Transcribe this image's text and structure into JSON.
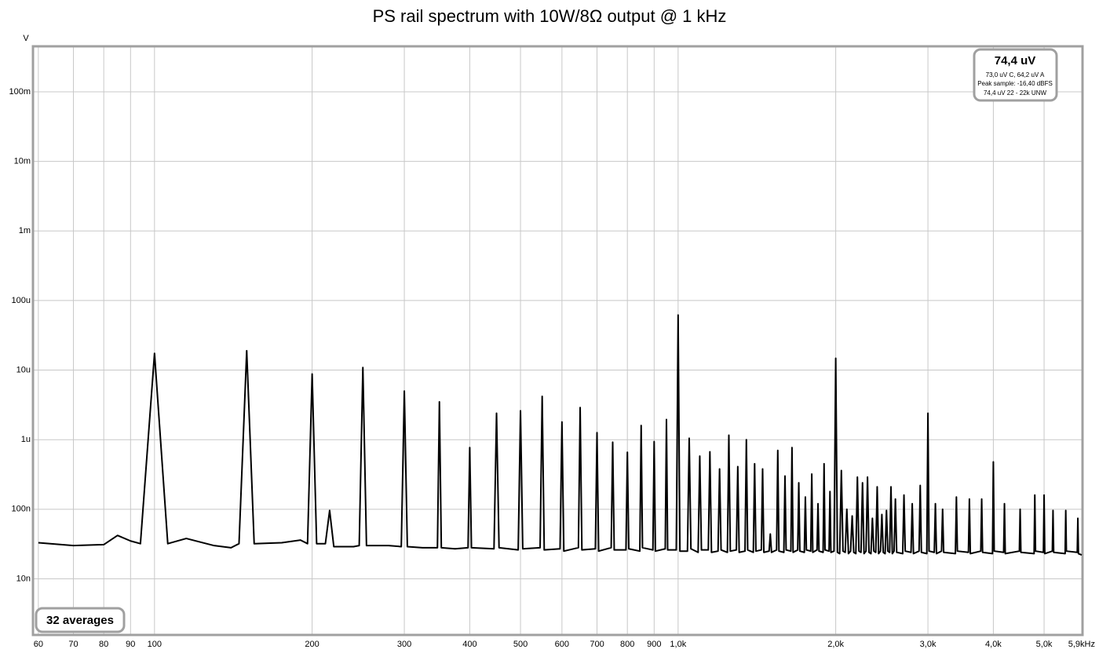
{
  "chart_data": {
    "type": "line",
    "title": "PS rail spectrum with 10W/8Ω output @ 1 kHz",
    "ylabel": "V",
    "log_x": true,
    "log_y": true,
    "grid": true,
    "color": "#000000",
    "xlim": [
      58.8,
      5900
    ],
    "ylim": [
      1.6e-09,
      0.44
    ],
    "xticks": [
      60,
      70,
      80,
      90,
      100,
      200,
      300,
      400,
      500,
      600,
      700,
      800,
      900,
      {
        "value": 1000,
        "label": "1,0k"
      },
      {
        "value": 2000,
        "label": "2,0k"
      },
      {
        "value": 3000,
        "label": "3,0k"
      },
      {
        "value": 4000,
        "label": "4,0k"
      },
      {
        "value": 5000,
        "label": "5,0k"
      },
      {
        "value": 5900,
        "label": "5,9kHz"
      }
    ],
    "yticks": [
      {
        "value": 1e-08,
        "label": "10n"
      },
      {
        "value": 1e-07,
        "label": "100n"
      },
      {
        "value": 1e-06,
        "label": "1u"
      },
      {
        "value": 1e-05,
        "label": "10u"
      },
      {
        "value": 0.0001,
        "label": "100u"
      },
      {
        "value": 0.001,
        "label": "1m"
      },
      {
        "value": 0.01,
        "label": "10m"
      },
      {
        "value": 0.1,
        "label": "100m"
      }
    ],
    "annotations": {
      "rms": "74,4 uV",
      "weighted": "73,0 uV C, 64,2 uV A",
      "peak": "Peak sample: -16,40 dBFS",
      "band": "74,4 uV 22 - 22k UNW",
      "averages": "32 averages"
    },
    "x": [
      60,
      70,
      80,
      85,
      90,
      94,
      100,
      106,
      115,
      130,
      140,
      145,
      150,
      155,
      175,
      190,
      196,
      200,
      204,
      212,
      216,
      220,
      240,
      246,
      250,
      254,
      280,
      296,
      300,
      304,
      325,
      347,
      350,
      353,
      375,
      397,
      400,
      403,
      445,
      450,
      455,
      495,
      500,
      505,
      545,
      550,
      555,
      595,
      600,
      605,
      645,
      650,
      655,
      695,
      700,
      705,
      745,
      750,
      755,
      795,
      800,
      805,
      845,
      850,
      855,
      895,
      900,
      905,
      945,
      950,
      955,
      992,
      1000,
      1008,
      1042,
      1050,
      1058,
      1092,
      1100,
      1108,
      1142,
      1150,
      1158,
      1192,
      1200,
      1208,
      1242,
      1250,
      1258,
      1292,
      1300,
      1308,
      1342,
      1350,
      1358,
      1392,
      1400,
      1408,
      1442,
      1450,
      1458,
      1492,
      1500,
      1508,
      1542,
      1550,
      1558,
      1592,
      1600,
      1608,
      1642,
      1650,
      1658,
      1692,
      1700,
      1708,
      1742,
      1750,
      1758,
      1792,
      1800,
      1808,
      1842,
      1850,
      1858,
      1892,
      1900,
      1908,
      1942,
      1950,
      1958,
      1985,
      2000,
      2015,
      2035,
      2050,
      2065,
      2085,
      2100,
      2115,
      2135,
      2150,
      2165,
      2185,
      2200,
      2215,
      2235,
      2250,
      2265,
      2285,
      2300,
      2315,
      2335,
      2350,
      2365,
      2385,
      2400,
      2415,
      2435,
      2450,
      2465,
      2485,
      2500,
      2515,
      2535,
      2550,
      2565,
      2585,
      2600,
      2615,
      2685,
      2700,
      2715,
      2785,
      2800,
      2815,
      2885,
      2900,
      2915,
      2985,
      3000,
      3015,
      3085,
      3100,
      3115,
      3185,
      3200,
      3215,
      3385,
      3400,
      3415,
      3585,
      3600,
      3615,
      3785,
      3800,
      3815,
      3985,
      4000,
      4015,
      4185,
      4200,
      4215,
      4485,
      4500,
      4515,
      4785,
      4800,
      4815,
      4985,
      5000,
      5015,
      5185,
      5200,
      5215,
      5485,
      5500,
      5515,
      5785,
      5800,
      5815,
      5900
    ],
    "values": [
      3.3e-08,
      3e-08,
      3.1e-08,
      4.2e-08,
      3.5e-08,
      3.2e-08,
      1.74e-05,
      3.2e-08,
      3.8e-08,
      3e-08,
      2.8e-08,
      3.2e-08,
      1.9e-05,
      3.2e-08,
      3.3e-08,
      3.6e-08,
      3.2e-08,
      8.8e-06,
      3.2e-08,
      3.2e-08,
      9.6e-08,
      2.9e-08,
      2.9e-08,
      3e-08,
      1.09e-05,
      3e-08,
      3e-08,
      2.9e-08,
      5e-06,
      2.9e-08,
      2.8e-08,
      2.8e-08,
      3.5e-06,
      2.8e-08,
      2.7e-08,
      2.8e-08,
      7.7e-07,
      2.8e-08,
      2.7e-08,
      2.4e-06,
      2.8e-08,
      2.6e-08,
      2.6e-06,
      2.7e-08,
      2.8e-08,
      4.2e-06,
      2.6e-08,
      2.7e-08,
      1.8e-06,
      2.5e-08,
      2.8e-08,
      2.9e-06,
      2.6e-08,
      2.7e-08,
      1.26e-06,
      2.5e-08,
      2.8e-08,
      9.2e-07,
      2.6e-08,
      2.6e-08,
      6.6e-07,
      2.7e-08,
      2.5e-08,
      1.6e-06,
      2.8e-08,
      2.6e-08,
      9.4e-07,
      2.5e-08,
      2.7e-08,
      1.95e-06,
      2.6e-08,
      2.6e-08,
      6.2e-05,
      2.5e-08,
      2.5e-08,
      1.05e-06,
      2.7e-08,
      2.4e-08,
      5.8e-07,
      2.6e-08,
      2.6e-08,
      6.7e-07,
      2.4e-08,
      2.5e-08,
      3.8e-07,
      2.6e-08,
      2.4e-08,
      1.16e-06,
      2.5e-08,
      2.6e-08,
      4.1e-07,
      2.4e-08,
      2.5e-08,
      1e-06,
      2.6e-08,
      2.4e-08,
      4.5e-07,
      2.5e-08,
      2.6e-08,
      3.8e-07,
      2.4e-08,
      2.5e-08,
      4.4e-08,
      2.4e-08,
      2.6e-08,
      7e-07,
      2.5e-08,
      2.4e-08,
      3e-07,
      2.6e-08,
      2.5e-08,
      7.7e-07,
      2.4e-08,
      2.6e-08,
      2.4e-07,
      2.5e-08,
      2.4e-08,
      1.5e-07,
      2.6e-08,
      2.5e-08,
      3.2e-07,
      2.4e-08,
      2.6e-08,
      1.2e-07,
      2.5e-08,
      2.4e-08,
      4.5e-07,
      2.6e-08,
      2.5e-08,
      1.8e-07,
      2.4e-08,
      2.5e-08,
      1.48e-05,
      2.4e-08,
      2.3e-08,
      3.6e-07,
      2.5e-08,
      2.4e-08,
      1e-07,
      2.3e-08,
      2.5e-08,
      8e-08,
      2.4e-08,
      2.3e-08,
      2.9e-07,
      2.5e-08,
      2.4e-08,
      2.4e-07,
      2.3e-08,
      2.5e-08,
      2.9e-07,
      2.4e-08,
      2.3e-08,
      7.4e-08,
      2.5e-08,
      2.4e-08,
      2.1e-07,
      2.3e-08,
      2.5e-08,
      8.4e-08,
      2.4e-08,
      2.3e-08,
      9.6e-08,
      2.5e-08,
      2.4e-08,
      2.1e-07,
      2.3e-08,
      2.5e-08,
      1.4e-07,
      2.4e-08,
      2.3e-08,
      1.6e-07,
      2.5e-08,
      2.4e-08,
      1.2e-07,
      2.3e-08,
      2.5e-08,
      2.2e-07,
      2.4e-08,
      2.3e-08,
      2.4e-06,
      2.5e-08,
      2.4e-08,
      1.2e-07,
      2.3e-08,
      2.5e-08,
      1e-07,
      2.4e-08,
      2.3e-08,
      1.5e-07,
      2.5e-08,
      2.4e-08,
      1.4e-07,
      2.3e-08,
      2.5e-08,
      1.4e-07,
      2.4e-08,
      2.3e-08,
      4.8e-07,
      2.5e-08,
      2.4e-08,
      1.2e-07,
      2.3e-08,
      2.5e-08,
      1e-07,
      2.4e-08,
      2.3e-08,
      1.6e-07,
      2.5e-08,
      2.4e-08,
      1.6e-07,
      2.3e-08,
      2.5e-08,
      9.6e-08,
      2.4e-08,
      2.3e-08,
      9.6e-08,
      2.5e-08,
      2.4e-08,
      7.4e-08,
      2.3e-08,
      2.2e-08
    ]
  }
}
